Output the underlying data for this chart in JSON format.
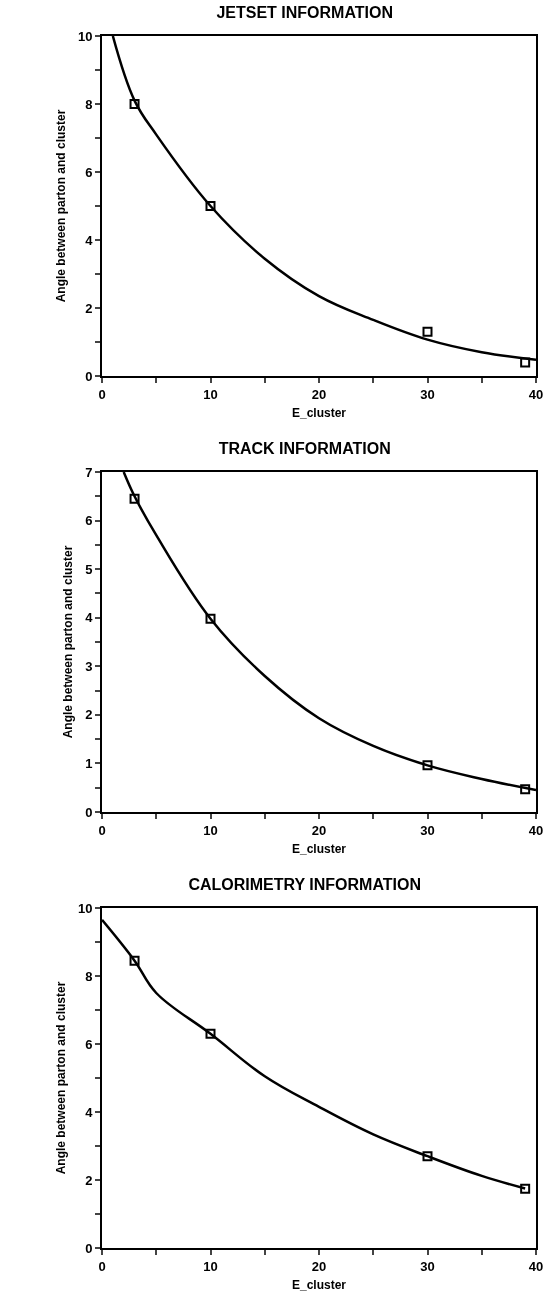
{
  "chart_data": [
    {
      "type": "scatter",
      "title": "JETSET INFORMATION",
      "xlabel": "E_cluster",
      "ylabel": "Angle between parton and cluster",
      "grid": false,
      "x": [
        3,
        10,
        30,
        39
      ],
      "xlim": [
        0,
        40
      ],
      "ylim": [
        0,
        10
      ],
      "xticks": [
        0,
        {
          "value": 5,
          "label": null
        },
        10,
        {
          "value": 15,
          "label": null
        },
        20,
        {
          "value": 25,
          "label": null
        },
        30,
        {
          "value": 35,
          "label": null
        },
        40
      ],
      "yticks": [
        0,
        {
          "value": 1,
          "label": null
        },
        2,
        {
          "value": 3,
          "label": null
        },
        4,
        {
          "value": 5,
          "label": null
        },
        6,
        {
          "value": 7,
          "label": null
        },
        8,
        {
          "value": 9,
          "label": null
        },
        10
      ],
      "series": [
        {
          "color": "#000000",
          "marker": "square",
          "values": [
            8.0,
            5.0,
            1.3,
            0.4
          ]
        },
        {
          "type": "line",
          "color": "#000000",
          "marker": "none",
          "x": [
            1,
            3,
            5,
            10,
            15,
            20,
            25,
            30,
            35,
            40
          ],
          "values": [
            10,
            8.1,
            7.1,
            5.0,
            3.45,
            2.35,
            1.65,
            1.07,
            0.7,
            0.48
          ]
        }
      ]
    },
    {
      "type": "scatter",
      "title": "TRACK INFORMATION",
      "xlabel": "E_cluster",
      "ylabel": "Angle between parton and cluster",
      "grid": false,
      "x": [
        3,
        10,
        30,
        39
      ],
      "xlim": [
        0,
        40
      ],
      "ylim": [
        0,
        7
      ],
      "xticks": [
        0,
        {
          "value": 5,
          "label": null
        },
        10,
        {
          "value": 15,
          "label": null
        },
        20,
        {
          "value": 25,
          "label": null
        },
        30,
        {
          "value": 35,
          "label": null
        },
        40
      ],
      "yticks": [
        0,
        {
          "value": 0.5,
          "label": null
        },
        1,
        {
          "value": 1.5,
          "label": null
        },
        2,
        {
          "value": 2.5,
          "label": null
        },
        3,
        {
          "value": 3.5,
          "label": null
        },
        4,
        {
          "value": 4.5,
          "label": null
        },
        5,
        {
          "value": 5.5,
          "label": null
        },
        6,
        {
          "value": 6.5,
          "label": null
        },
        7
      ],
      "series": [
        {
          "color": "#000000",
          "marker": "square",
          "values": [
            6.45,
            3.98,
            0.96,
            0.47
          ]
        },
        {
          "type": "line",
          "color": "#000000",
          "marker": "none",
          "x": [
            2,
            3,
            5,
            10,
            15,
            20,
            25,
            30,
            35,
            40
          ],
          "values": [
            7,
            6.5,
            5.7,
            3.98,
            2.8,
            1.93,
            1.36,
            0.96,
            0.68,
            0.45
          ]
        }
      ]
    },
    {
      "type": "scatter",
      "title": "CALORIMETRY INFORMATION",
      "xlabel": "E_cluster",
      "ylabel": "Angle between parton and cluster",
      "grid": false,
      "x": [
        3,
        10,
        30,
        39
      ],
      "xlim": [
        0,
        40
      ],
      "ylim": [
        0,
        10
      ],
      "xticks": [
        0,
        {
          "value": 5,
          "label": null
        },
        10,
        {
          "value": 15,
          "label": null
        },
        20,
        {
          "value": 25,
          "label": null
        },
        30,
        {
          "value": 35,
          "label": null
        },
        40
      ],
      "yticks": [
        0,
        {
          "value": 1,
          "label": null
        },
        2,
        {
          "value": 3,
          "label": null
        },
        4,
        {
          "value": 5,
          "label": null
        },
        6,
        {
          "value": 7,
          "label": null
        },
        8,
        {
          "value": 9,
          "label": null
        },
        10
      ],
      "series": [
        {
          "color": "#000000",
          "marker": "square",
          "values": [
            8.45,
            6.3,
            2.7,
            1.74
          ]
        },
        {
          "type": "line",
          "color": "#000000",
          "marker": "none",
          "x": [
            0,
            3,
            5,
            10,
            15,
            20,
            25,
            30,
            35,
            39
          ],
          "values": [
            9.65,
            8.45,
            7.5,
            6.3,
            5.05,
            4.15,
            3.34,
            2.7,
            2.12,
            1.75
          ]
        }
      ]
    }
  ]
}
